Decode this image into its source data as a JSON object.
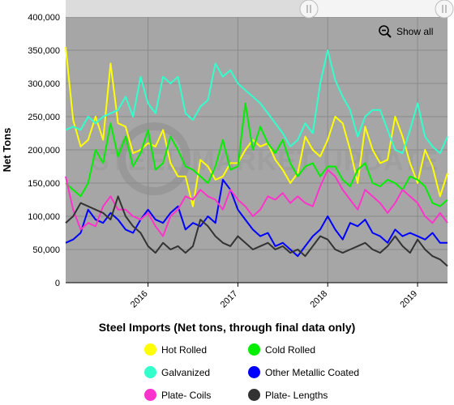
{
  "chart_data": {
    "type": "line",
    "title": "Steel Imports (Net tons, through final data only)",
    "ylabel": "Net Tons",
    "xlabel": "",
    "ylim": [
      0,
      400000
    ],
    "y_ticks": [
      "0",
      "50,000",
      "100,000",
      "150,000",
      "200,000",
      "250,000",
      "300,000",
      "350,000",
      "400,000"
    ],
    "x_ticks": [
      "2016",
      "2017",
      "2018",
      "2019"
    ],
    "x_tick_positions": [
      "2016-01",
      "2017-01",
      "2018-01",
      "2019-01"
    ],
    "x_range": [
      "2015-02",
      "2019-05"
    ],
    "grid": true,
    "legend_position": "bottom",
    "watermark": "STEEL MARKET UPDATE",
    "x": [
      "2015-02",
      "2015-03",
      "2015-04",
      "2015-05",
      "2015-06",
      "2015-07",
      "2015-08",
      "2015-09",
      "2015-10",
      "2015-11",
      "2015-12",
      "2016-01",
      "2016-02",
      "2016-03",
      "2016-04",
      "2016-05",
      "2016-06",
      "2016-07",
      "2016-08",
      "2016-09",
      "2016-10",
      "2016-11",
      "2016-12",
      "2017-01",
      "2017-02",
      "2017-03",
      "2017-04",
      "2017-05",
      "2017-06",
      "2017-07",
      "2017-08",
      "2017-09",
      "2017-10",
      "2017-11",
      "2017-12",
      "2018-01",
      "2018-02",
      "2018-03",
      "2018-04",
      "2018-05",
      "2018-06",
      "2018-07",
      "2018-08",
      "2018-09",
      "2018-10",
      "2018-11",
      "2018-12",
      "2019-01",
      "2019-02",
      "2019-03",
      "2019-04",
      "2019-05"
    ],
    "series": [
      {
        "name": "Hot Rolled",
        "color": "#ffff00",
        "values": [
          355000,
          245000,
          205000,
          215000,
          250000,
          215000,
          330000,
          240000,
          235000,
          195000,
          200000,
          210000,
          205000,
          230000,
          180000,
          160000,
          160000,
          115000,
          185000,
          175000,
          155000,
          160000,
          180000,
          180000,
          200000,
          215000,
          205000,
          210000,
          185000,
          170000,
          150000,
          165000,
          220000,
          200000,
          190000,
          215000,
          250000,
          240000,
          200000,
          150000,
          235000,
          200000,
          180000,
          185000,
          250000,
          220000,
          180000,
          150000,
          200000,
          175000,
          130000,
          165000
        ]
      },
      {
        "name": "Cold Rolled",
        "color": "#00ee00",
        "values": [
          150000,
          140000,
          130000,
          150000,
          200000,
          180000,
          240000,
          190000,
          220000,
          175000,
          195000,
          230000,
          170000,
          180000,
          220000,
          200000,
          175000,
          170000,
          160000,
          150000,
          175000,
          215000,
          170000,
          175000,
          270000,
          200000,
          235000,
          210000,
          195000,
          215000,
          180000,
          160000,
          175000,
          180000,
          160000,
          175000,
          175000,
          155000,
          145000,
          170000,
          180000,
          150000,
          145000,
          155000,
          150000,
          140000,
          160000,
          155000,
          145000,
          120000,
          115000,
          125000
        ]
      },
      {
        "name": "Galvanized",
        "color": "#33ffcc",
        "values": [
          230000,
          235000,
          230000,
          250000,
          240000,
          250000,
          255000,
          260000,
          280000,
          250000,
          310000,
          270000,
          255000,
          310000,
          300000,
          310000,
          255000,
          245000,
          265000,
          275000,
          330000,
          310000,
          320000,
          300000,
          290000,
          280000,
          270000,
          255000,
          240000,
          225000,
          205000,
          215000,
          240000,
          225000,
          300000,
          350000,
          305000,
          280000,
          260000,
          220000,
          250000,
          260000,
          260000,
          230000,
          200000,
          195000,
          230000,
          270000,
          220000,
          205000,
          195000,
          220000
        ]
      },
      {
        "name": "Other Metallic Coated",
        "color": "#0000ff",
        "values": [
          60000,
          65000,
          75000,
          110000,
          95000,
          90000,
          105000,
          95000,
          80000,
          75000,
          95000,
          110000,
          95000,
          90000,
          105000,
          115000,
          80000,
          90000,
          85000,
          100000,
          90000,
          155000,
          140000,
          110000,
          95000,
          80000,
          70000,
          75000,
          55000,
          60000,
          50000,
          40000,
          55000,
          70000,
          80000,
          100000,
          80000,
          65000,
          90000,
          85000,
          95000,
          75000,
          70000,
          60000,
          80000,
          70000,
          75000,
          70000,
          65000,
          75000,
          60000,
          60000
        ]
      },
      {
        "name": "Plate- Coils",
        "color": "#ff33cc",
        "values": [
          160000,
          110000,
          80000,
          90000,
          85000,
          115000,
          130000,
          110000,
          110000,
          100000,
          95000,
          105000,
          85000,
          70000,
          100000,
          110000,
          130000,
          125000,
          140000,
          130000,
          125000,
          110000,
          140000,
          125000,
          115000,
          100000,
          110000,
          130000,
          125000,
          135000,
          120000,
          130000,
          120000,
          115000,
          145000,
          170000,
          160000,
          140000,
          125000,
          110000,
          140000,
          130000,
          120000,
          105000,
          120000,
          140000,
          130000,
          120000,
          100000,
          90000,
          105000,
          90000
        ]
      },
      {
        "name": "Plate- Lengths",
        "color": "#333333",
        "values": [
          90000,
          100000,
          120000,
          115000,
          110000,
          105000,
          95000,
          130000,
          100000,
          85000,
          75000,
          55000,
          45000,
          60000,
          50000,
          55000,
          45000,
          55000,
          95000,
          85000,
          70000,
          60000,
          55000,
          70000,
          60000,
          50000,
          55000,
          60000,
          50000,
          55000,
          45000,
          50000,
          40000,
          55000,
          70000,
          65000,
          50000,
          45000,
          50000,
          55000,
          60000,
          50000,
          45000,
          55000,
          70000,
          55000,
          45000,
          65000,
          50000,
          40000,
          35000,
          25000
        ]
      }
    ]
  },
  "controls": {
    "show_all_label": "Show all",
    "show_all_icon": "zoom-out-icon",
    "navigator_handle_icon": "grip-lines-icon"
  }
}
